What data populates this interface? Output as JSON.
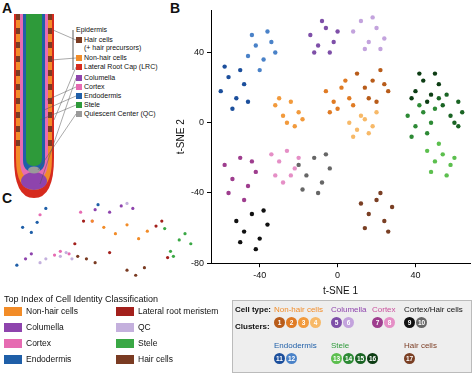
{
  "panel_labels": [
    "A",
    "B",
    "C"
  ],
  "panel_a": {
    "header": "Epidermis",
    "epidermis_items": [
      {
        "label": "Hair cells",
        "note": "(+ hair precursors)",
        "color": "#7a3b22"
      },
      {
        "label": "Non-hair cells",
        "color": "#f28c28"
      },
      {
        "label": "Lateral Root Cap (LRC)",
        "color": "#d62a1e"
      }
    ],
    "items": [
      {
        "label": "Columella",
        "color": "#8e44ad"
      },
      {
        "label": "Cortex",
        "color": "#e66bb2"
      },
      {
        "label": "Endodermis",
        "color": "#1f5fa8"
      },
      {
        "label": "Stele",
        "color": "#2e9a3a"
      },
      {
        "label": "Quiescent Center (QC)",
        "color": "#9a9a9a"
      }
    ]
  },
  "chart_data": [
    {
      "type": "scatter",
      "x_label": "t-SNE 1",
      "y_label": "t-SNE 2",
      "xlim": [
        -65,
        68
      ],
      "ylim": [
        -80,
        64
      ],
      "xticks": [
        -40,
        0,
        40
      ],
      "yticks": [
        -80,
        -40,
        0,
        40
      ],
      "grid": false,
      "series": [
        {
          "name": "1",
          "color": "#b85c1a",
          "x": [
            10,
            14,
            18,
            22,
            26,
            16,
            20,
            24
          ],
          "values": [
            28,
            20,
            24,
            30,
            18,
            14,
            12,
            22
          ]
        },
        {
          "name": "2",
          "color": "#e07b24",
          "x": [
            -6,
            -2,
            2,
            6,
            0,
            4,
            -4,
            8
          ],
          "values": [
            18,
            12,
            20,
            14,
            8,
            24,
            6,
            10
          ]
        },
        {
          "name": "3",
          "color": "#f29a3c",
          "x": [
            -32,
            -28,
            -24,
            -20,
            -26,
            -18,
            -30,
            -22
          ],
          "values": [
            10,
            4,
            12,
            6,
            0,
            2,
            14,
            -2
          ]
        },
        {
          "name": "4",
          "color": "#f7b968",
          "x": [
            6,
            10,
            14,
            18,
            8,
            16,
            12,
            20
          ],
          "values": [
            0,
            -4,
            2,
            -2,
            -8,
            -6,
            4,
            6
          ]
        },
        {
          "name": "5",
          "color": "#7e4fa8",
          "x": [
            -14,
            -10,
            -6,
            -2,
            -12,
            -4,
            -8,
            0
          ],
          "values": [
            50,
            44,
            54,
            46,
            40,
            40,
            58,
            52
          ]
        },
        {
          "name": "6",
          "color": "#c3a3dd",
          "x": [
            8,
            12,
            16,
            20,
            24,
            14,
            22,
            18
          ],
          "values": [
            52,
            58,
            46,
            54,
            48,
            42,
            42,
            60
          ]
        },
        {
          "name": "7",
          "color": "#9e3d8e",
          "x": [
            -58,
            -54,
            -50,
            -46,
            -42,
            -56,
            -48,
            -44
          ],
          "values": [
            -24,
            -32,
            -20,
            -36,
            -28,
            -40,
            -44,
            -22
          ]
        },
        {
          "name": "8",
          "color": "#e58fc6",
          "x": [
            -34,
            -30,
            -26,
            -22,
            -32,
            -28,
            -24,
            -20
          ],
          "values": [
            -18,
            -22,
            -16,
            -26,
            -30,
            -34,
            -30,
            -20
          ]
        },
        {
          "name": "9",
          "color": "#111111",
          "x": [
            -52,
            -48,
            -44,
            -40,
            -36,
            -50,
            -42,
            -38
          ],
          "values": [
            -56,
            -62,
            -52,
            -66,
            -58,
            -68,
            -72,
            -50
          ]
        },
        {
          "name": "10",
          "color": "#666666",
          "x": [
            -20,
            -16,
            -12,
            -8,
            -4,
            -18,
            -10,
            -6
          ],
          "values": [
            -24,
            -30,
            -20,
            -34,
            -26,
            -38,
            -40,
            -18
          ]
        },
        {
          "name": "11",
          "color": "#1c4f9c",
          "x": [
            -60,
            -56,
            -52,
            -48,
            -58,
            -54,
            -50,
            -46
          ],
          "values": [
            18,
            26,
            14,
            22,
            32,
            8,
            30,
            12
          ]
        },
        {
          "name": "12",
          "color": "#4a82c8",
          "x": [
            -46,
            -42,
            -38,
            -34,
            -44,
            -40,
            -36,
            -32
          ],
          "values": [
            38,
            44,
            36,
            46,
            50,
            30,
            52,
            40
          ]
        },
        {
          "name": "13",
          "color": "#5cbf4e",
          "x": [
            46,
            50,
            54,
            58,
            48,
            56,
            52,
            60
          ],
          "values": [
            -16,
            -22,
            -18,
            -24,
            -28,
            -30,
            -12,
            -20
          ]
        },
        {
          "name": "14",
          "color": "#2d8a35",
          "x": [
            36,
            40,
            44,
            48,
            38,
            46,
            42,
            50
          ],
          "values": [
            4,
            -2,
            6,
            0,
            -8,
            -6,
            10,
            8
          ]
        },
        {
          "name": "15",
          "color": "#1a6424",
          "x": [
            54,
            58,
            62,
            56,
            60,
            64,
            52,
            62
          ],
          "values": [
            10,
            4,
            12,
            16,
            0,
            6,
            14,
            -2
          ]
        },
        {
          "name": "16",
          "color": "#0d3d14",
          "x": [
            40,
            44,
            48,
            52,
            42,
            50,
            46,
            38
          ],
          "values": [
            18,
            24,
            16,
            22,
            28,
            28,
            12,
            14
          ]
        },
        {
          "name": "17",
          "color": "#7a3f24",
          "x": [
            12,
            16,
            20,
            24,
            28,
            14,
            26,
            22
          ],
          "values": [
            -46,
            -52,
            -44,
            -56,
            -48,
            -60,
            -62,
            -40
          ]
        }
      ]
    },
    {
      "type": "scatter",
      "title": "Top Index of Cell Identity Classification",
      "xlim": [
        -65,
        68
      ],
      "ylim": [
        -80,
        64
      ],
      "grid": false,
      "tick_labels": false,
      "legend": "bottom",
      "series": [
        {
          "name": "Non-hair cells",
          "color": "#f28c28",
          "x": [
            0,
            8,
            16,
            24,
            -8,
            30
          ],
          "values": [
            20,
            10,
            24,
            2,
            30,
            14
          ]
        },
        {
          "name": "Lateral root meristem",
          "color": "#a3201c",
          "x": [
            36,
            40,
            -20,
            44,
            -14,
            4
          ],
          "values": [
            22,
            30,
            -6,
            -28,
            30,
            -20
          ]
        },
        {
          "name": "Columella",
          "color": "#8e44ad",
          "x": [
            -6,
            4,
            12,
            -54,
            -50,
            20
          ],
          "values": [
            48,
            44,
            54,
            -30,
            -22,
            50
          ]
        },
        {
          "name": "QC",
          "color": "#c4b0dd",
          "x": [
            -30,
            -26,
            -44,
            16,
            -40,
            -22
          ],
          "values": [
            -26,
            -20,
            -36,
            58,
            -30,
            -30
          ]
        },
        {
          "name": "Cortex",
          "color": "#e66bb2",
          "x": [
            -30,
            -34,
            -24,
            -8,
            -16,
            -44
          ],
          "values": [
            -18,
            -24,
            -22,
            30,
            44,
            40
          ]
        },
        {
          "name": "Stele",
          "color": "#3aa845",
          "x": [
            46,
            52,
            56,
            42,
            60,
            48
          ],
          "values": [
            -18,
            0,
            10,
            18,
            -6,
            -26
          ]
        },
        {
          "name": "Endodermis",
          "color": "#1f5fa8",
          "x": [
            -56,
            -50,
            -46,
            -60,
            -4,
            -40
          ],
          "values": [
            20,
            12,
            28,
            -40,
            56,
            50
          ]
        },
        {
          "name": "Hair cells",
          "color": "#7a3b22",
          "x": [
            16,
            22,
            28,
            -12,
            -6,
            -18
          ],
          "values": [
            -48,
            -56,
            -44,
            -30,
            -36,
            -26
          ]
        }
      ]
    }
  ],
  "cluster_legend": {
    "cell_type_label": "Cell type:",
    "clusters_label": "Clusters:",
    "groups": [
      {
        "name": "Non-hair cells",
        "color": "#f28c28",
        "clusters": [
          1,
          2,
          3,
          4
        ]
      },
      {
        "name": "Columella",
        "color": "#8e44ad",
        "clusters": [
          5,
          6
        ]
      },
      {
        "name": "Cortex",
        "color": "#c9509c",
        "clusters": [
          7,
          8
        ]
      },
      {
        "name": "Cortex/Hair cells",
        "color": "#111111",
        "clusters": [
          9,
          10
        ]
      },
      {
        "name": "Endodermis",
        "color": "#1f5fa8",
        "clusters": [
          11,
          12
        ]
      },
      {
        "name": "Stele",
        "color": "#2e9a3a",
        "clusters": [
          13,
          14,
          15,
          16
        ]
      },
      {
        "name": "Hair cells",
        "color": "#7a3b22",
        "clusters": [
          17
        ]
      }
    ]
  }
}
